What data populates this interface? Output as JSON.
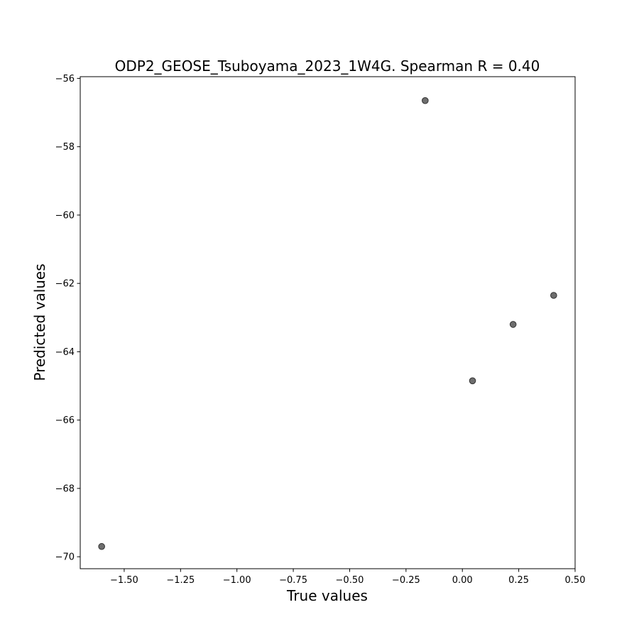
{
  "chart_data": {
    "type": "scatter",
    "title": "ODP2_GEOSE_Tsuboyama_2023_1W4G. Spearman R = 0.40",
    "xlabel": "True values",
    "ylabel": "Predicted values",
    "xlim": [
      -1.695,
      0.5
    ],
    "ylim": [
      -70.35,
      -55.95
    ],
    "xticks": [
      -1.5,
      -1.25,
      -1.0,
      -0.75,
      -0.5,
      -0.25,
      0.0,
      0.25,
      0.5
    ],
    "xtick_labels": [
      "−1.50",
      "−1.25",
      "−1.00",
      "−0.75",
      "−0.50",
      "−0.25",
      "0.00",
      "0.25",
      "0.50"
    ],
    "yticks": [
      -56,
      -58,
      -60,
      -62,
      -64,
      -66,
      -68,
      -70
    ],
    "ytick_labels": [
      "−56",
      "−58",
      "−60",
      "−62",
      "−64",
      "−66",
      "−68",
      "−70"
    ],
    "grid": false,
    "marker_color": "#555555",
    "points": [
      {
        "x": -1.6,
        "y": -69.7
      },
      {
        "x": -0.165,
        "y": -56.65
      },
      {
        "x": 0.045,
        "y": -64.85
      },
      {
        "x": 0.225,
        "y": -63.2
      },
      {
        "x": 0.405,
        "y": -62.35
      }
    ]
  }
}
